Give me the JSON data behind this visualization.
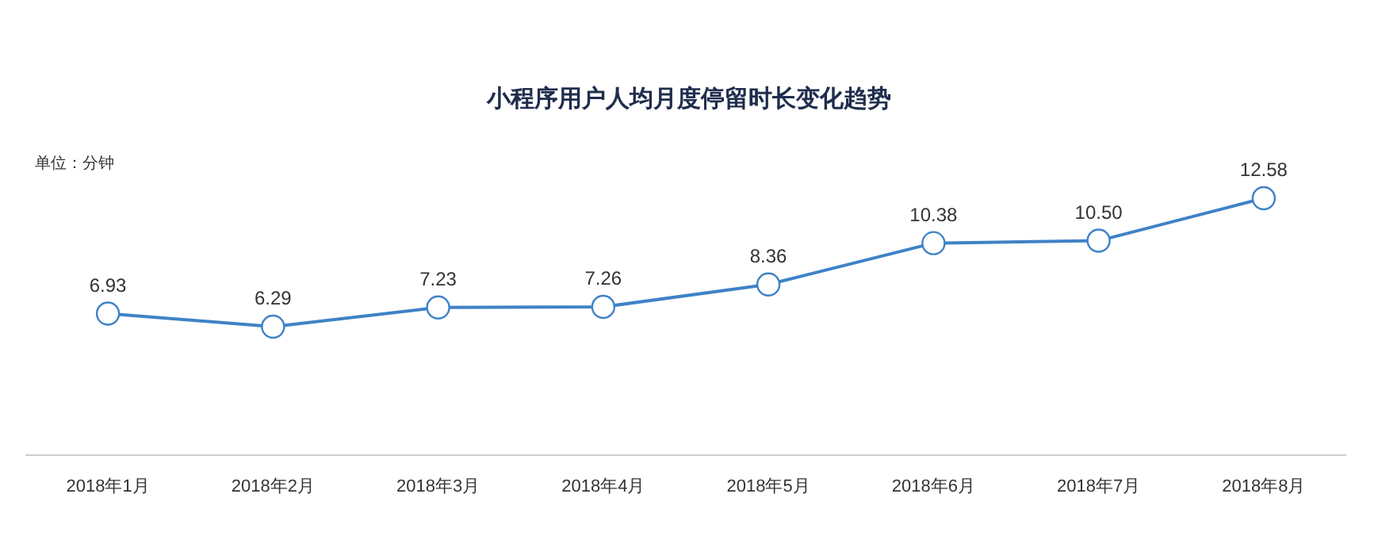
{
  "chart_data": {
    "type": "line",
    "title": "小程序用户人均月度停留时长变化趋势",
    "annotations": [
      "单位：分钟"
    ],
    "categories": [
      "2018年1月",
      "2018年2月",
      "2018年3月",
      "2018年4月",
      "2018年5月",
      "2018年6月",
      "2018年7月",
      "2018年8月"
    ],
    "series": [
      {
        "color": "#3f82c6",
        "values": [
          6.93,
          6.29,
          7.23,
          7.26,
          8.36,
          10.38,
          10.5,
          12.58
        ],
        "value_labels": [
          "6.93",
          "6.29",
          "7.23",
          "7.26",
          "8.36",
          "10.38",
          "10.50",
          "12.58"
        ]
      }
    ],
    "grid": false,
    "marker": "circle",
    "line_style": "solid",
    "tick_labels": "x"
  }
}
